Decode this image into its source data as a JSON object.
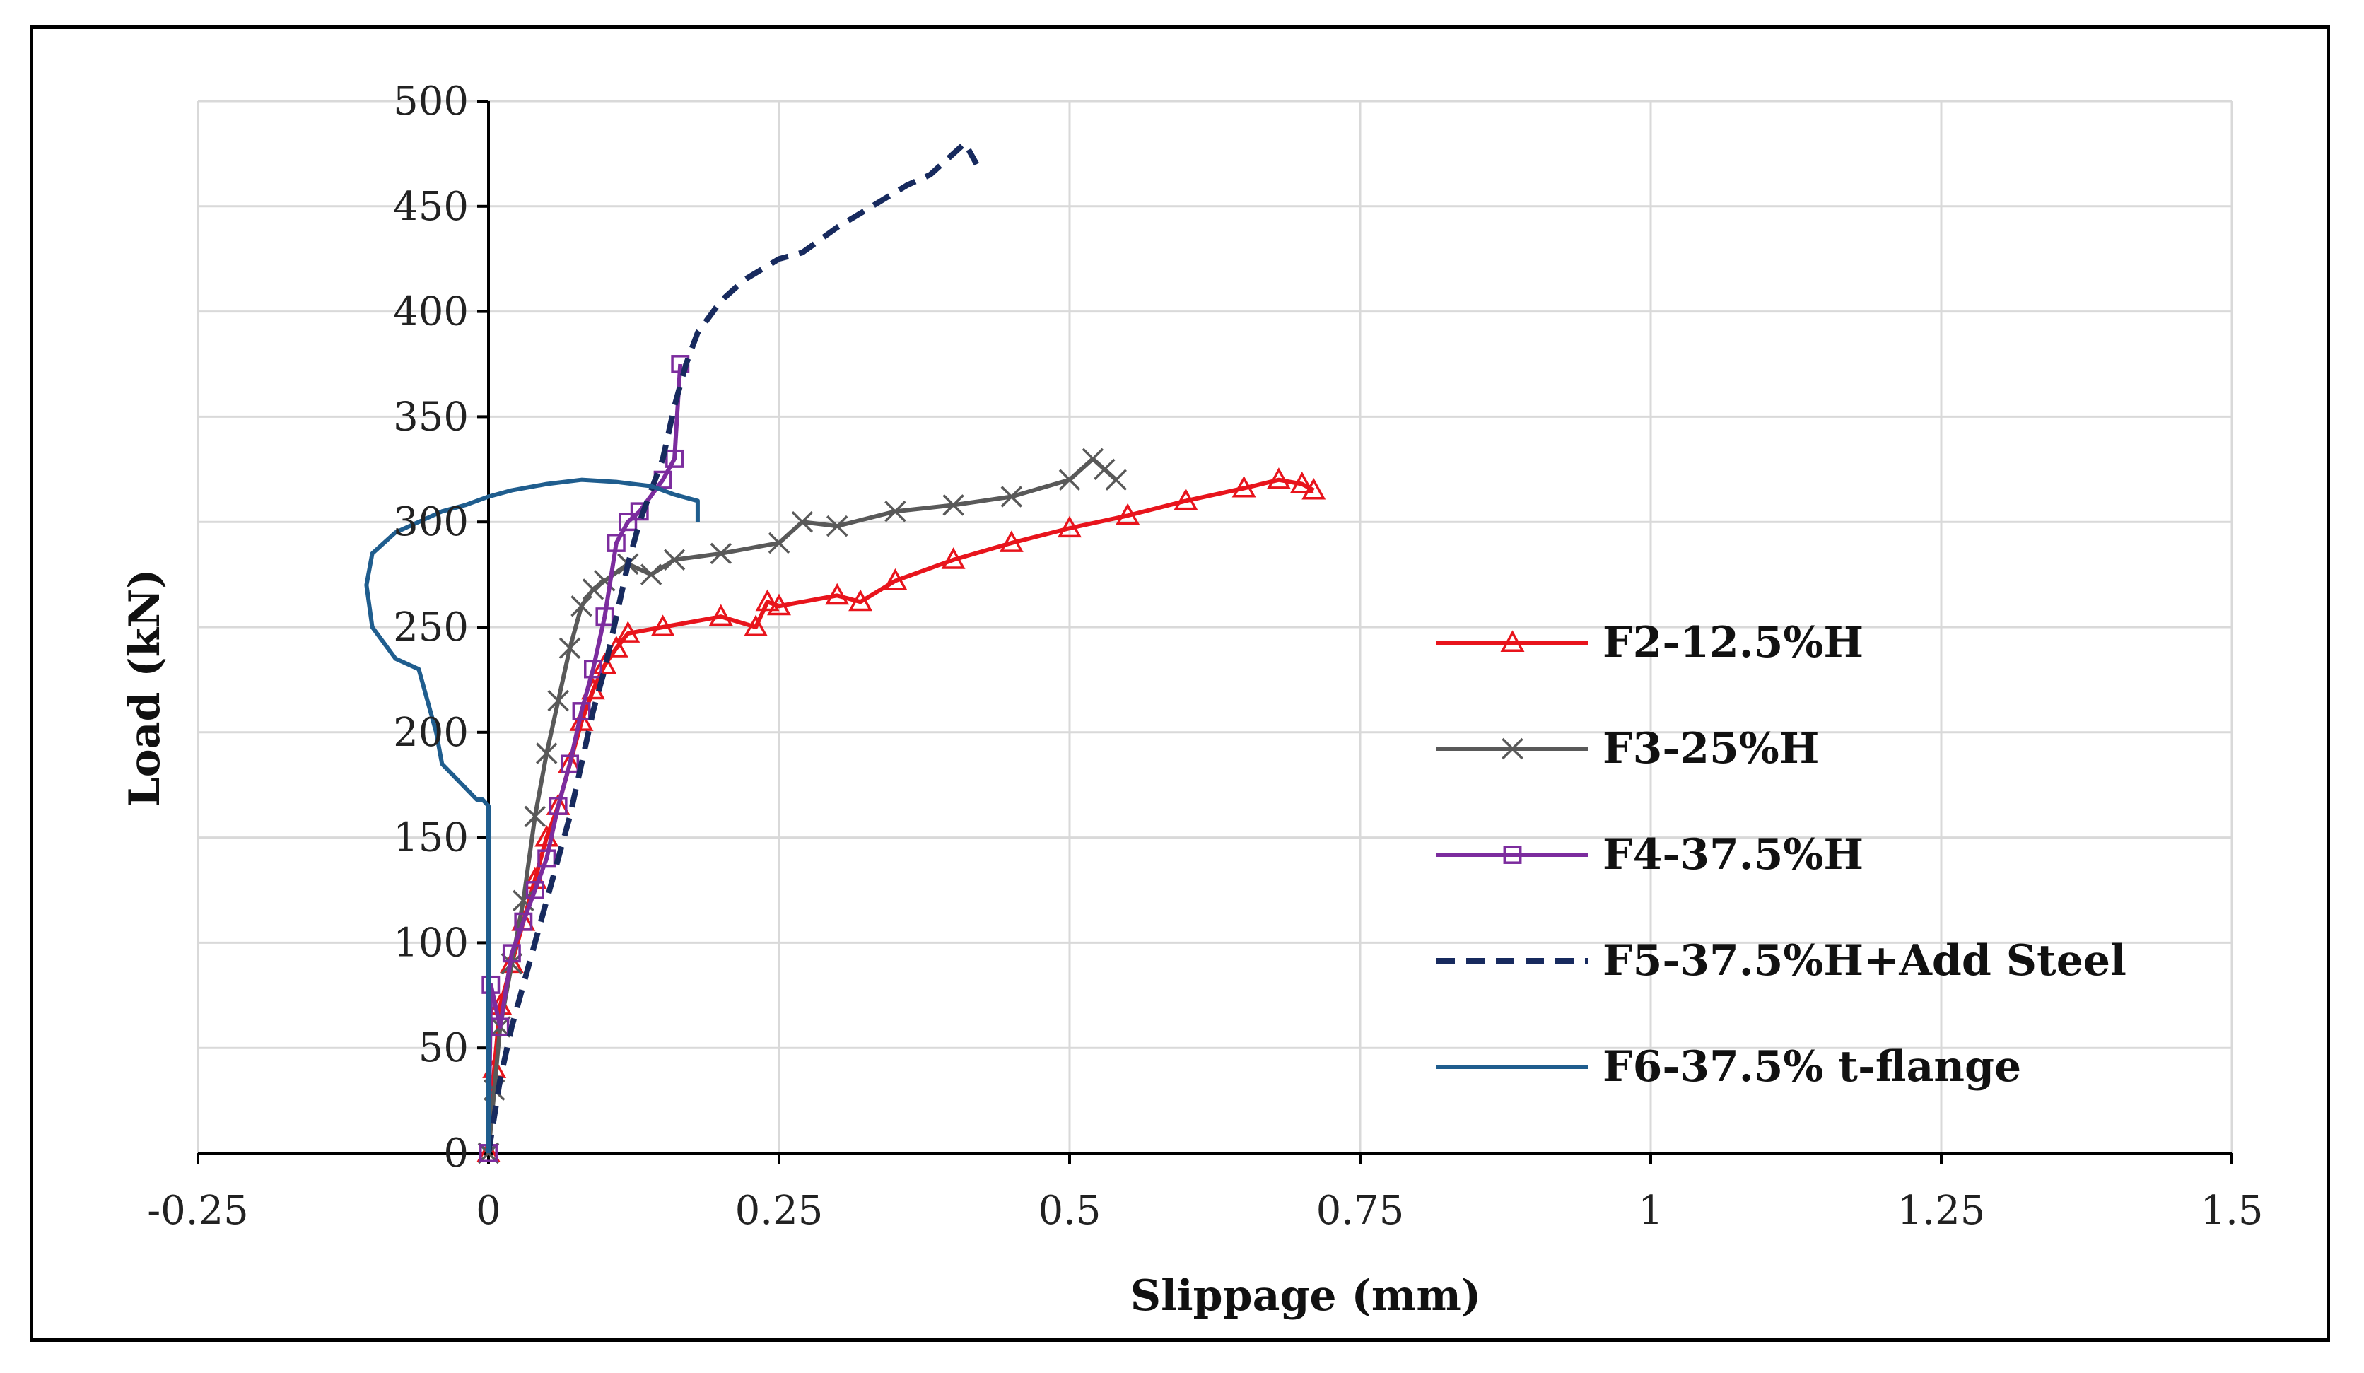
{
  "chart_data": {
    "type": "line",
    "title": "",
    "xlabel": "Slippage (mm)",
    "ylabel": "Load (kN)",
    "xlim": [
      -0.25,
      1.5
    ],
    "ylim": [
      0,
      500
    ],
    "xticks": [
      -0.25,
      0,
      0.25,
      0.5,
      0.75,
      1,
      1.25,
      1.5
    ],
    "xtick_labels": [
      "-0.25",
      "0",
      "0.25",
      "0.5",
      "0.75",
      "1",
      "1.25",
      "1.5"
    ],
    "yticks": [
      0,
      50,
      100,
      150,
      200,
      250,
      300,
      350,
      400,
      450,
      500
    ],
    "ytick_labels": [
      "0",
      "50",
      "100",
      "150",
      "200",
      "250",
      "300",
      "350",
      "400",
      "450",
      "500"
    ],
    "grid": true,
    "legend_position": "right",
    "series": [
      {
        "name": "F2-12.5%H",
        "color": "#e8141c",
        "dash": "solid",
        "marker": "triangle",
        "x": [
          0,
          0.005,
          0.01,
          0.02,
          0.03,
          0.04,
          0.05,
          0.06,
          0.07,
          0.08,
          0.09,
          0.1,
          0.11,
          0.12,
          0.15,
          0.2,
          0.23,
          0.24,
          0.25,
          0.3,
          0.32,
          0.35,
          0.4,
          0.45,
          0.5,
          0.55,
          0.6,
          0.65,
          0.68,
          0.7,
          0.71
        ],
        "y": [
          0,
          40,
          70,
          90,
          110,
          130,
          150,
          165,
          185,
          205,
          220,
          232,
          240,
          247,
          250,
          255,
          250,
          262,
          260,
          265,
          262,
          272,
          282,
          290,
          297,
          303,
          310,
          316,
          320,
          318,
          315
        ]
      },
      {
        "name": "F3-25%H",
        "color": "#595959",
        "dash": "solid",
        "marker": "x",
        "x": [
          0,
          0.005,
          0.01,
          0.02,
          0.03,
          0.04,
          0.05,
          0.06,
          0.07,
          0.08,
          0.09,
          0.1,
          0.12,
          0.14,
          0.16,
          0.2,
          0.25,
          0.27,
          0.3,
          0.35,
          0.4,
          0.45,
          0.5,
          0.52,
          0.53,
          0.54
        ],
        "y": [
          0,
          30,
          60,
          90,
          120,
          160,
          190,
          215,
          240,
          260,
          268,
          272,
          280,
          275,
          282,
          285,
          290,
          300,
          298,
          305,
          308,
          312,
          320,
          330,
          325,
          320
        ]
      },
      {
        "name": "F4-37.5%H",
        "color": "#7c2c9e",
        "dash": "solid",
        "marker": "square",
        "x": [
          0,
          0.002,
          0.01,
          0.02,
          0.03,
          0.04,
          0.05,
          0.06,
          0.07,
          0.08,
          0.09,
          0.1,
          0.11,
          0.12,
          0.13,
          0.15,
          0.16,
          0.165
        ],
        "y": [
          0,
          80,
          60,
          95,
          110,
          125,
          140,
          165,
          185,
          210,
          230,
          255,
          290,
          300,
          305,
          320,
          330,
          375
        ]
      },
      {
        "name": "F5-37.5%H+Add Steel",
        "color": "#172a5e",
        "dash": "dashed",
        "marker": "none",
        "x": [
          0,
          0.01,
          0.02,
          0.03,
          0.04,
          0.05,
          0.06,
          0.07,
          0.08,
          0.09,
          0.1,
          0.11,
          0.12,
          0.13,
          0.15,
          0.16,
          0.17,
          0.18,
          0.2,
          0.22,
          0.25,
          0.27,
          0.3,
          0.33,
          0.36,
          0.38,
          0.4,
          0.41,
          0.42
        ],
        "y": [
          0,
          35,
          60,
          80,
          100,
          120,
          140,
          160,
          185,
          210,
          230,
          255,
          280,
          300,
          330,
          355,
          375,
          390,
          405,
          415,
          425,
          428,
          440,
          450,
          460,
          465,
          475,
          480,
          470
        ]
      },
      {
        "name": "F6-37.5% t-flange",
        "color": "#1f5d8e",
        "dash": "solid",
        "marker": "none",
        "x": [
          0,
          0,
          -0.005,
          -0.01,
          -0.04,
          -0.045,
          -0.05,
          -0.055,
          -0.06,
          -0.08,
          -0.1,
          -0.105,
          -0.1,
          -0.08,
          -0.06,
          -0.04,
          -0.02,
          0,
          0.02,
          0.05,
          0.08,
          0.11,
          0.14,
          0.16,
          0.18,
          0.18
        ],
        "y": [
          0,
          165,
          168,
          168,
          185,
          200,
          210,
          220,
          230,
          235,
          250,
          270,
          285,
          295,
          300,
          305,
          308,
          312,
          315,
          318,
          320,
          319,
          317,
          313,
          310,
          300
        ]
      }
    ]
  }
}
